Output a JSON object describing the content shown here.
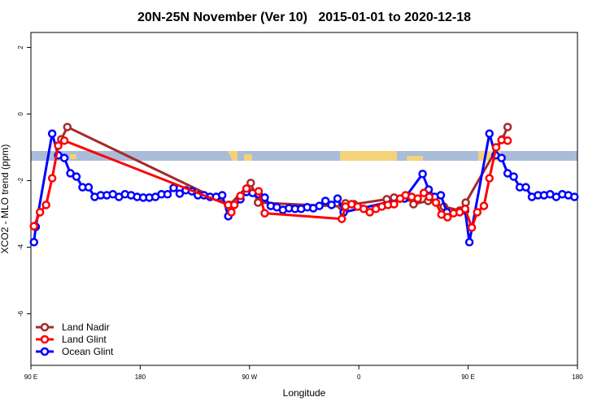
{
  "chart_data": {
    "type": "line",
    "title": "20N-25N November (Ver 10)   2015-01-01 to 2020-12-18",
    "xlabel": "Longitude",
    "ylabel": "XCO2 - MLO trend (ppm)",
    "xlim": [
      90,
      540
    ],
    "ylim": [
      -7.55,
      2.45
    ],
    "xticks": [
      {
        "value": 90,
        "label": "90 E"
      },
      180,
      {
        "value": 270,
        "label": "90 W"
      },
      {
        "value": 360,
        "label": "0"
      },
      {
        "value": 450,
        "label": "90 E"
      },
      {
        "value": 540,
        "label": "180"
      }
    ],
    "yticks": [
      2,
      0,
      -2,
      -4,
      -6
    ],
    "legend": "bottomleft",
    "series": [
      {
        "name": "Land Nadir",
        "color": "#a52a2a",
        "x": [
          115,
          120,
          253.5,
          271,
          277,
          346,
          349,
          356,
          383,
          389,
          394,
          400,
          405,
          417,
          430,
          443,
          448,
          478,
          482.5
        ],
        "values": [
          -0.76,
          -0.39,
          -2.73,
          -2.07,
          -2.66,
          -2.78,
          -2.68,
          -2.71,
          -2.56,
          -2.51,
          -2.54,
          -2.51,
          -2.71,
          -2.61,
          -2.78,
          -2.9,
          -2.66,
          -0.76,
          -0.39
        ]
      },
      {
        "name": "Ocean Glint",
        "color": "#0000ff",
        "x": [
          92.5,
          94,
          107.5,
          112.5,
          117.5,
          122.5,
          127.5,
          132.5,
          137.5,
          142.5,
          147.5,
          152.5,
          157.5,
          162.5,
          167.5,
          172.5,
          177.5,
          182.5,
          187.5,
          192.5,
          197.5,
          202.5,
          207.5,
          212.5,
          217.5,
          222.5,
          227.5,
          232.5,
          237.5,
          242.5,
          247.5,
          252.5,
          262.5,
          267.5,
          272.5,
          277.5,
          282.5,
          287.5,
          292.5,
          297.5,
          302.5,
          307.5,
          312.5,
          317.5,
          322.5,
          327.5,
          332.5,
          337.5,
          342.5,
          347.5,
          397.5,
          412.5,
          417.5,
          422.5,
          427.5,
          432.5,
          447.5,
          451,
          467.5,
          472.5,
          477.5,
          482.5,
          487.5,
          492.5,
          497.5,
          502.5,
          507.5,
          512.5,
          517.5,
          522.5,
          527.5,
          532.5,
          537.5
        ],
        "values": [
          -3.85,
          -3.39,
          -0.59,
          -1.24,
          -1.32,
          -1.78,
          -1.88,
          -2.2,
          -2.2,
          -2.49,
          -2.44,
          -2.44,
          -2.41,
          -2.49,
          -2.41,
          -2.44,
          -2.49,
          -2.51,
          -2.51,
          -2.49,
          -2.41,
          -2.41,
          -2.22,
          -2.39,
          -2.29,
          -2.32,
          -2.44,
          -2.44,
          -2.49,
          -2.49,
          -2.44,
          -3.07,
          -2.56,
          -2.34,
          -2.37,
          -2.41,
          -2.51,
          -2.76,
          -2.8,
          -2.88,
          -2.83,
          -2.85,
          -2.85,
          -2.8,
          -2.83,
          -2.76,
          -2.61,
          -2.73,
          -2.54,
          -2.95,
          -2.54,
          -1.8,
          -2.27,
          -2.49,
          -2.44,
          -2.95,
          -2.9,
          -3.85,
          -0.59,
          -1.24,
          -1.32,
          -1.78,
          -1.88,
          -2.2,
          -2.2,
          -2.49,
          -2.44,
          -2.44,
          -2.41,
          -2.49,
          -2.41,
          -2.44,
          -2.49
        ]
      },
      {
        "name": "Land Glint",
        "color": "#ff0000",
        "x": [
          92.5,
          97.5,
          102.5,
          107.5,
          112.5,
          117.5,
          252.5,
          255,
          257.5,
          262.5,
          267.5,
          277.5,
          282.5,
          346,
          349,
          354,
          359,
          364,
          369,
          374,
          379,
          384,
          389,
          394,
          398.5,
          403.5,
          408.5,
          413.5,
          418,
          423.5,
          428,
          433,
          438,
          443,
          447.5,
          453,
          457.5,
          463,
          467.5,
          473,
          477.5,
          482.5
        ],
        "values": [
          -3.37,
          -2.95,
          -2.73,
          -1.93,
          -0.95,
          -0.8,
          -2.73,
          -2.95,
          -2.73,
          -2.46,
          -2.24,
          -2.32,
          -2.98,
          -3.15,
          -2.78,
          -2.71,
          -2.78,
          -2.85,
          -2.95,
          -2.85,
          -2.78,
          -2.73,
          -2.71,
          -2.54,
          -2.44,
          -2.49,
          -2.54,
          -2.37,
          -2.49,
          -2.66,
          -3.02,
          -3.1,
          -2.98,
          -2.95,
          -2.85,
          -3.41,
          -2.95,
          -2.76,
          -1.93,
          -1.0,
          -0.78,
          -0.8
        ]
      }
    ]
  }
}
